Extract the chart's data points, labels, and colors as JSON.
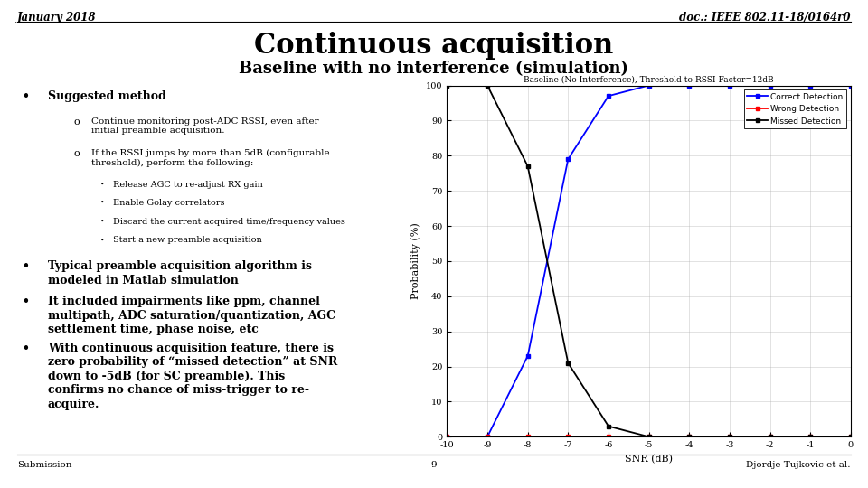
{
  "title": "Continuous acquisition",
  "subtitle": "Baseline with no interference (simulation)",
  "header_left": "January 2018",
  "header_right": "doc.: IEEE 802.11-18/0164r0",
  "footer_left": "Submission",
  "footer_center": "9",
  "footer_right": "Djordje Tujkovic et al.",
  "chart_title": "Baseline (No Interference), Threshold-to-RSSI-Factor=12dB",
  "xlabel": "SNR (dB)",
  "ylabel": "Probability (%)",
  "snr_values": [
    -10,
    -9,
    -8,
    -7,
    -6,
    -5,
    -4,
    -3,
    -2,
    -1,
    0
  ],
  "correct_detection": [
    0,
    0,
    23,
    79,
    97,
    100,
    100,
    100,
    100,
    100,
    100
  ],
  "wrong_detection": [
    0,
    0,
    0,
    0,
    0,
    0,
    0,
    0,
    0,
    0,
    0
  ],
  "missed_detection": [
    100,
    100,
    77,
    21,
    3,
    0,
    0,
    0,
    0,
    0,
    0
  ],
  "correct_color": "#0000FF",
  "wrong_color": "#FF0000",
  "missed_color": "#000000",
  "bg_color": "#FFFFFF",
  "slide_bg": "#FFFFFF"
}
